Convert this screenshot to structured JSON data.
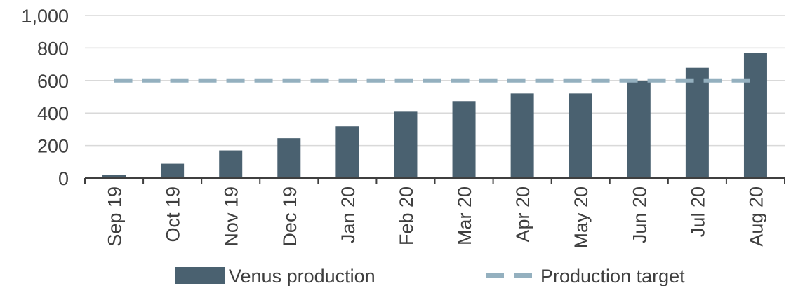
{
  "chart_data": {
    "type": "bar",
    "title": "",
    "xlabel": "",
    "ylabel": "",
    "categories": [
      "Sep 19",
      "Oct 19",
      "Nov 19",
      "Dec 19",
      "Jan 20",
      "Feb 20",
      "Mar 20",
      "Apr 20",
      "May 20",
      "Jun 20",
      "Jul 20",
      "Aug 20"
    ],
    "series": [
      {
        "name": "Venus production",
        "type": "bar",
        "color": "#4a6170",
        "values": [
          18,
          88,
          170,
          245,
          318,
          408,
          473,
          520,
          520,
          595,
          678,
          768
        ]
      },
      {
        "name": "Production target",
        "type": "line",
        "style": "dashed",
        "color": "#94b0bf",
        "values": [
          600,
          600,
          600,
          600,
          600,
          600,
          600,
          600,
          600,
          600,
          600,
          600
        ]
      }
    ],
    "ylim": [
      0,
      1000
    ],
    "yticks": [
      0,
      200,
      400,
      600,
      800,
      1000
    ],
    "ytick_labels": [
      "0",
      "200",
      "400",
      "600",
      "800",
      "1,000"
    ],
    "grid": true,
    "legend_position": "bottom"
  }
}
